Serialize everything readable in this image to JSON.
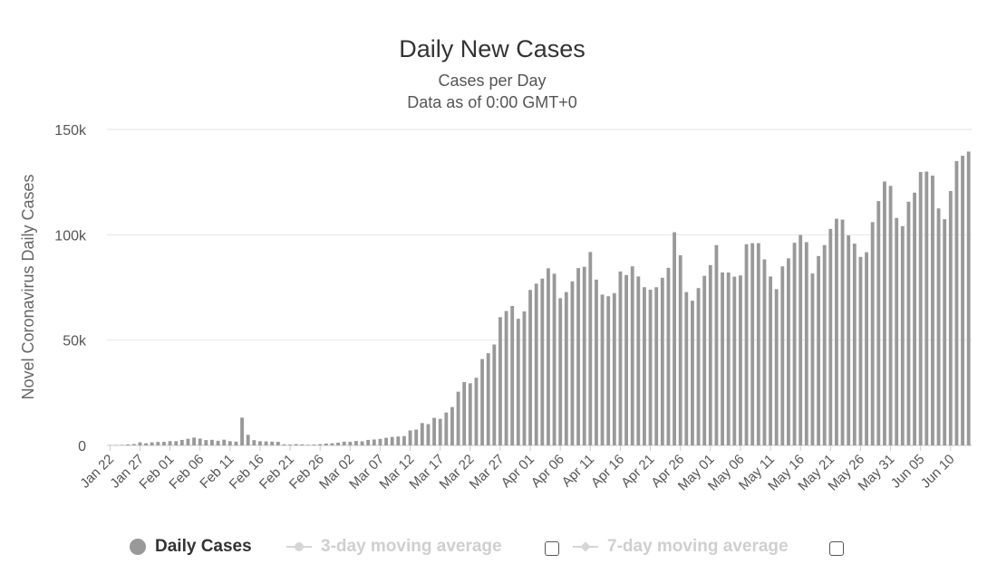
{
  "chart_data": {
    "type": "bar",
    "title": "Daily New Cases",
    "subtitle_lines": [
      "Cases per Day",
      "Data as of 0:00 GMT+0"
    ],
    "ylabel": "Novel Coronavirus Daily Cases",
    "xlabel": "",
    "ylim": [
      0,
      150000
    ],
    "yticks": [
      {
        "value": 0,
        "label": "0"
      },
      {
        "value": 50000,
        "label": "50k"
      },
      {
        "value": 100000,
        "label": "100k"
      },
      {
        "value": 150000,
        "label": "150k"
      }
    ],
    "xtick_labels": [
      "Jan 22",
      "Jan 27",
      "Feb 01",
      "Feb 06",
      "Feb 11",
      "Feb 16",
      "Feb 21",
      "Feb 26",
      "Mar 02",
      "Mar 07",
      "Mar 12",
      "Mar 17",
      "Mar 22",
      "Mar 27",
      "Apr 01",
      "Apr 06",
      "Apr 11",
      "Apr 16",
      "Apr 21",
      "Apr 26",
      "May 01",
      "May 06",
      "May 11",
      "May 16",
      "May 21",
      "May 26",
      "May 31",
      "Jun 05",
      "Jun 10"
    ],
    "xtick_every": 5,
    "grid": true,
    "bar_color": "#999999",
    "series": [
      {
        "name": "Daily Cases",
        "values": [
          100,
          150,
          250,
          450,
          650,
          1450,
          1000,
          1450,
          1650,
          1700,
          2050,
          2000,
          2600,
          3150,
          3700,
          3250,
          2550,
          2650,
          2200,
          2700,
          2000,
          1800,
          13200,
          5000,
          2500,
          2000,
          1900,
          1800,
          1700,
          500,
          400,
          600,
          500,
          300,
          400,
          600,
          900,
          1000,
          1300,
          1800,
          1700,
          2100,
          1900,
          2600,
          2800,
          3100,
          3600,
          4000,
          4200,
          4400,
          7100,
          7500,
          10600,
          10100,
          13100,
          12600,
          15600,
          18200,
          25500,
          30100,
          29500,
          32100,
          41000,
          43800,
          47900,
          60900,
          63800,
          66200,
          60100,
          63600,
          73800,
          76800,
          79200,
          84100,
          81500,
          69900,
          72800,
          77900,
          84200,
          84800,
          91800,
          78700,
          71600,
          70800,
          72300,
          82600,
          80900,
          85000,
          80200,
          75100,
          73900,
          75100,
          79600,
          84300,
          101200,
          90300,
          72800,
          68700,
          74700,
          80500,
          85600,
          95100,
          82100,
          82100,
          80100,
          80700,
          95500,
          96000,
          96000,
          88300,
          80200,
          74200,
          85000,
          88800,
          96200,
          99900,
          96500,
          81600,
          89900,
          95100,
          102800,
          107600,
          107200,
          99700,
          95800,
          89500,
          91700,
          106000,
          116000,
          125300,
          123200,
          108000,
          104100,
          115700,
          120000,
          129800,
          130000,
          128100,
          112500,
          107400,
          120800,
          135000,
          137500,
          139500
        ]
      }
    ],
    "legend": [
      {
        "label": "Daily Cases",
        "state": "active",
        "symbol": "circle"
      },
      {
        "label": "3-day moving average",
        "state": "inactive",
        "symbol": "circle"
      },
      {
        "label": "7-day moving average",
        "state": "inactive",
        "symbol": "diamond"
      }
    ]
  }
}
